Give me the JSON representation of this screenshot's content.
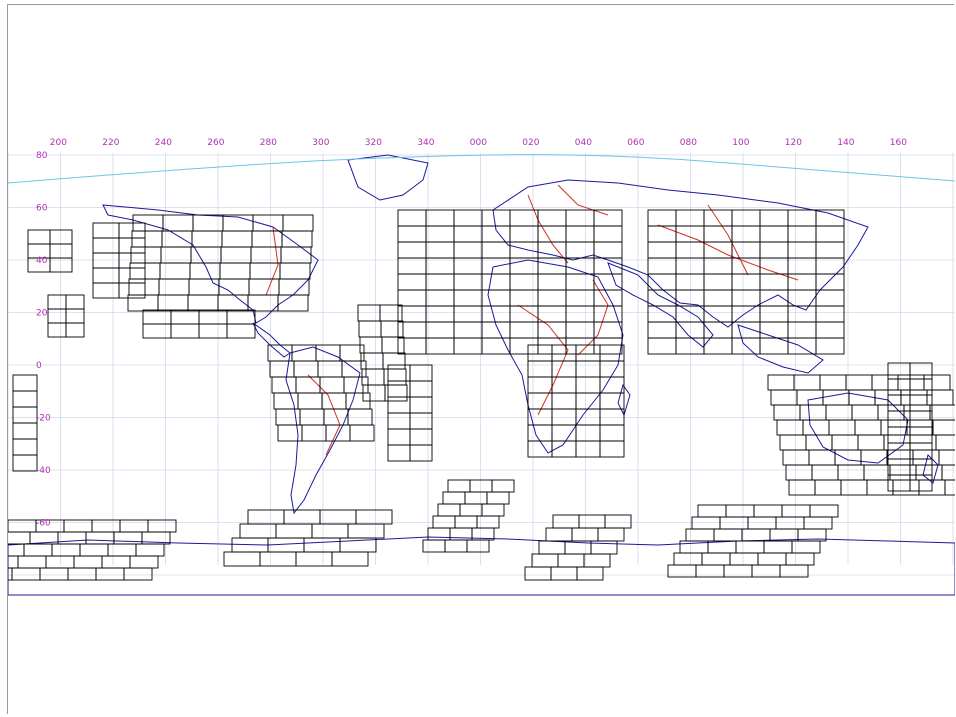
{
  "map": {
    "longitude_labels": [
      "200",
      "220",
      "240",
      "260",
      "280",
      "300",
      "320",
      "340",
      "000",
      "020",
      "040",
      "060",
      "080",
      "100",
      "120",
      "140",
      "160"
    ],
    "latitude_labels": [
      "80",
      "60",
      "40",
      "20",
      "0",
      "-20",
      "-40",
      "-60"
    ],
    "colors": {
      "grid": "#d6d6ec",
      "coast": "#6fc3e8",
      "land_outline": "#1a1a9c",
      "borders": "#d03020",
      "footprints": "#000000",
      "labels": "#b030b0"
    },
    "footprint_regions": [
      "north-america",
      "south-america",
      "europe-africa",
      "asia",
      "australia-oceania",
      "antarctica"
    ]
  }
}
